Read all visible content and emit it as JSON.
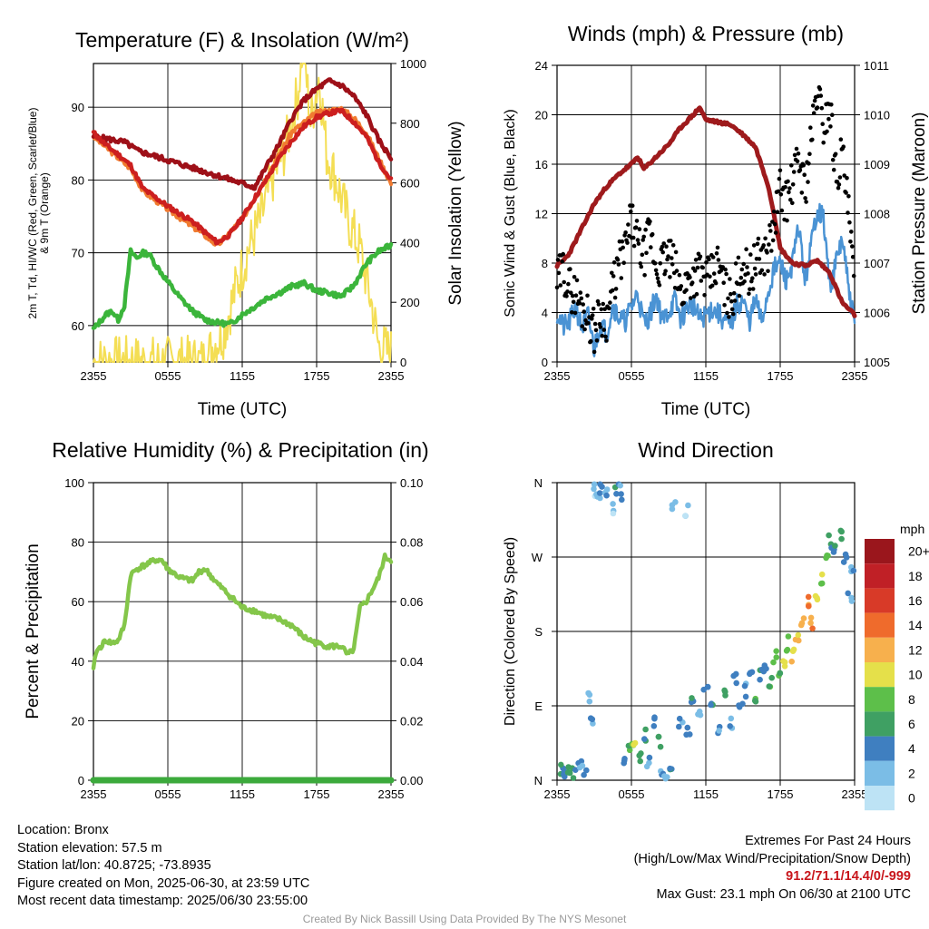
{
  "colors": {
    "temperature": "#cc1f1f",
    "heat_index_scarlet": "#9e1018",
    "dewpoint": "#3bb53b",
    "temp_9m_orange": "#f07b30",
    "insolation": "#f4de54",
    "sonic_wind": "#4a93d4",
    "gust": "#000000",
    "pressure": "#9e1a1c",
    "relative_humidity": "#84c64a",
    "precipitation": "#3caa3c",
    "extremes": "#c8151b"
  },
  "x_ticks": [
    "2355",
    "0555",
    "1155",
    "1755",
    "2355"
  ],
  "info": {
    "location": "Location: Bronx",
    "elevation": "Station elevation: 57.5 m",
    "latlon": "Station lat/lon: 40.8725; -73.8935",
    "created": "Figure created on Mon, 2025-06-30, at 23:59 UTC",
    "recent": "Most recent data timestamp: 2025/06/30 23:55:00"
  },
  "extremes": {
    "title": "Extremes For Past 24 Hours",
    "subtitle": "(High/Low/Max Wind/Precipitation/Snow Depth)",
    "values": "91.2/71.1/14.4/0/-999",
    "max_gust": "Max Gust: 23.1 mph On 06/30 at 2100 UTC"
  },
  "footer": "Created By Nick Bassill Using Data Provided By The NYS Mesonet",
  "chart_data": [
    {
      "type": "line",
      "id": "temperature",
      "title": "Temperature (F) & Insolation (W/m²)",
      "xlabel": "Time (UTC)",
      "ylabel_left": [
        "2m T, Td, HI/WC (Red, Green, Scarlet/Blue)",
        "& 9m T (Orange)"
      ],
      "ylabel_right": "Solar Insolation (Yellow)",
      "x_range_hours": [
        0,
        24
      ],
      "ylim_left": [
        55,
        96
      ],
      "ylim_right": [
        0,
        1000
      ],
      "yticks_left": [
        60,
        70,
        80,
        90
      ],
      "yticks_right": [
        0,
        200,
        400,
        600,
        800,
        1000
      ],
      "series": [
        {
          "name": "2m T",
          "axis": "left",
          "x": [
            0,
            1,
            2,
            3,
            4,
            5,
            6,
            7,
            8,
            9,
            10,
            11,
            12,
            13,
            14,
            15,
            16,
            17,
            18,
            19,
            20,
            21,
            22,
            23,
            24
          ],
          "y": [
            86.5,
            84.8,
            83.5,
            82.0,
            78.8,
            77.6,
            76.4,
            75.3,
            74.3,
            72.8,
            71.4,
            72.5,
            74.8,
            77.5,
            80.2,
            83.0,
            85.4,
            87.4,
            88.6,
            89.2,
            89.5,
            88.0,
            86.0,
            82.5,
            80.0
          ]
        },
        {
          "name": "9m T",
          "axis": "left",
          "x": [
            0,
            3,
            4,
            6,
            9,
            10,
            12,
            14,
            16,
            18,
            20,
            21,
            22,
            23,
            24
          ],
          "y": [
            86.0,
            81.6,
            78.5,
            76.0,
            72.4,
            71.0,
            74.6,
            80.5,
            86.6,
            89.2,
            89.8,
            88.5,
            86.5,
            83.0,
            79.5
          ]
        },
        {
          "name": "Heat Index",
          "axis": "left",
          "x": [
            0,
            2.5,
            3.6,
            13,
            14,
            15,
            16,
            17,
            18,
            19,
            20,
            21,
            22,
            23,
            24
          ],
          "y": [
            86.0,
            85.2,
            84.0,
            79.0,
            82.0,
            85.0,
            88.5,
            91.0,
            92.5,
            93.6,
            93.0,
            91.5,
            89.0,
            85.5,
            83.0
          ]
        },
        {
          "name": "Td",
          "axis": "left",
          "x": [
            0,
            0.5,
            1,
            1.5,
            2,
            2.5,
            3,
            3.5,
            4,
            4.5,
            5,
            6,
            7,
            8,
            9,
            10,
            11,
            12,
            13,
            14,
            15,
            16,
            17,
            18,
            19,
            20,
            21,
            22,
            23,
            24
          ],
          "y": [
            59.5,
            60.5,
            61.5,
            62.0,
            60.8,
            62.8,
            70.2,
            69.3,
            70.0,
            69.8,
            68.4,
            66.0,
            63.8,
            62.0,
            60.8,
            60.4,
            60.2,
            61.5,
            62.6,
            63.8,
            64.5,
            65.4,
            65.8,
            64.8,
            64.5,
            64.0,
            65.5,
            68.5,
            70.2,
            71.0
          ]
        },
        {
          "name": "Solar Insolation",
          "axis": "right",
          "x": [
            0,
            9,
            9.6,
            10.5,
            11.5,
            12.5,
            13.5,
            14.5,
            15.5,
            16.5,
            16.9,
            17.5,
            18.2,
            18.8,
            19.5,
            20.5,
            21.5,
            22.5,
            23,
            24
          ],
          "y": [
            0,
            0,
            50,
            100,
            250,
            380,
            480,
            620,
            720,
            900,
            1080,
            800,
            960,
            700,
            620,
            480,
            380,
            180,
            50,
            30
          ]
        }
      ]
    },
    {
      "type": "line",
      "id": "winds",
      "title": "Winds (mph) & Pressure (mb)",
      "xlabel": "Time (UTC)",
      "ylabel_left": "Sonic Wind & Gust (Blue, Black)",
      "ylabel_right": "Station Pressure (Maroon)",
      "x_range_hours": [
        0,
        24
      ],
      "ylim_left": [
        0,
        24
      ],
      "ylim_right": [
        1005,
        1011
      ],
      "yticks_left": [
        0,
        4,
        8,
        12,
        16,
        20,
        24
      ],
      "yticks_right": [
        1005,
        1006,
        1007,
        1008,
        1009,
        1010,
        1011
      ],
      "series": [
        {
          "name": "Station Pressure",
          "axis": "right",
          "x": [
            0,
            0.5,
            1,
            2,
            3,
            4,
            5,
            6,
            6.5,
            7,
            8,
            9,
            10,
            11,
            11.5,
            12,
            13,
            14,
            15,
            16,
            17,
            17.5,
            18,
            19,
            20,
            21,
            22,
            23,
            24
          ],
          "y": [
            1006.95,
            1007.05,
            1007.2,
            1007.7,
            1008.2,
            1008.55,
            1008.8,
            1009.0,
            1009.15,
            1008.9,
            1009.15,
            1009.4,
            1009.75,
            1010.0,
            1010.15,
            1009.9,
            1009.85,
            1009.8,
            1009.6,
            1009.35,
            1008.6,
            1008.0,
            1007.3,
            1007.0,
            1006.95,
            1007.05,
            1006.8,
            1006.2,
            1005.95
          ]
        },
        {
          "name": "Sonic Wind",
          "axis": "left",
          "x": [
            0,
            0.5,
            1,
            1.5,
            2,
            2.5,
            3,
            3.5,
            4,
            4.5,
            5,
            5.5,
            6,
            6.5,
            7,
            7.5,
            8,
            8.5,
            9,
            9.5,
            10,
            10.5,
            11,
            11.5,
            12,
            12.5,
            13,
            13.5,
            14,
            14.5,
            15,
            15.5,
            16,
            16.5,
            17,
            17.5,
            18,
            18.5,
            19,
            19.5,
            20,
            20.5,
            21,
            21.5,
            22,
            22.5,
            23,
            23.5,
            24
          ],
          "y": [
            4.0,
            2.8,
            3.2,
            4.5,
            2.7,
            3.8,
            1.0,
            3.2,
            2.3,
            4.6,
            3.6,
            3.3,
            4.5,
            5.6,
            3.1,
            3.8,
            5.5,
            3.3,
            4.1,
            5.0,
            3.4,
            4.5,
            4.6,
            3.4,
            3.8,
            4.3,
            3.9,
            3.3,
            2.9,
            4.6,
            5.0,
            3.2,
            5.0,
            3.3,
            5.5,
            7.5,
            8.0,
            6.5,
            8.0,
            11.0,
            6.5,
            9.5,
            12.5,
            11.5,
            6.0,
            8.0,
            10.0,
            6.0,
            3.0
          ]
        },
        {
          "name": "Gust",
          "axis": "left",
          "style": "points",
          "x": [
            0,
            0.5,
            1,
            1.5,
            2,
            2.5,
            3,
            3.5,
            4,
            4.5,
            5,
            5.5,
            6,
            6.5,
            7,
            7.5,
            8,
            8.5,
            9,
            9.5,
            10,
            10.5,
            11,
            11.5,
            12,
            12.5,
            13,
            13.5,
            14,
            14.5,
            15,
            15.5,
            16,
            16.5,
            17,
            17.5,
            18,
            18.5,
            19,
            19.5,
            20,
            20.5,
            21,
            21.5,
            22,
            22.5,
            23,
            23.5,
            24
          ],
          "y": [
            6.5,
            7.5,
            6.0,
            5.5,
            4.5,
            3.8,
            2.5,
            4.0,
            3.5,
            6.0,
            8.0,
            9.0,
            11.5,
            9.5,
            8.5,
            10.5,
            7.5,
            8.0,
            8.5,
            7.5,
            5.5,
            6.5,
            7.0,
            7.5,
            6.5,
            7.0,
            8.0,
            6.0,
            5.0,
            6.5,
            8.0,
            7.0,
            8.0,
            8.5,
            9.0,
            11.0,
            14.0,
            13.0,
            14.5,
            16.5,
            14.0,
            18.0,
            22.0,
            19.0,
            21.0,
            15.0,
            17.0,
            12.0,
            6.0
          ]
        }
      ]
    },
    {
      "type": "line",
      "id": "humidity",
      "title": "Relative Humidity (%) & Precipitation (in)",
      "ylabel_left": "Percent & Precipitation",
      "x_range_hours": [
        0,
        24
      ],
      "ylim_left": [
        0,
        100
      ],
      "ylim_right": [
        0,
        0.1
      ],
      "yticks_left": [
        0,
        20,
        40,
        60,
        80,
        100
      ],
      "yticks_right": [
        "0.00",
        "0.02",
        "0.04",
        "0.06",
        "0.08",
        "0.10"
      ],
      "series": [
        {
          "name": "Relative Humidity",
          "axis": "left",
          "x": [
            0,
            0.2,
            0.6,
            1,
            1.5,
            2,
            2.5,
            3,
            3.5,
            4,
            5,
            5.5,
            6,
            7,
            8,
            8.5,
            9,
            10,
            11,
            12,
            13,
            14,
            15,
            16,
            17,
            18,
            19,
            20,
            20.5,
            21,
            21.5,
            22,
            23,
            23.5,
            24
          ],
          "y": [
            37,
            43,
            45,
            47,
            46,
            47,
            52,
            69,
            71,
            72,
            74,
            74,
            71,
            68,
            67,
            70,
            71,
            66,
            62,
            58,
            57,
            55,
            54,
            52,
            48,
            46,
            45,
            45,
            42,
            44,
            58,
            60,
            68,
            75,
            74
          ]
        },
        {
          "name": "Precipitation",
          "axis": "right",
          "x": [
            0,
            24
          ],
          "y": [
            0,
            0
          ]
        }
      ]
    },
    {
      "type": "scatter",
      "id": "wind_direction",
      "title": "Wind Direction",
      "ylabel_left": "Direction (Colored By Speed)",
      "x_range_hours": [
        0,
        24
      ],
      "ylim_degrees": [
        0,
        360
      ],
      "yticks": [
        "N",
        "E",
        "S",
        "W",
        "N"
      ],
      "colorbar": {
        "title": "mph",
        "labels": [
          "0",
          "2",
          "4",
          "6",
          "8",
          "10",
          "12",
          "14",
          "16",
          "18",
          "20+"
        ],
        "colors": [
          "#bde3f5",
          "#7bbde6",
          "#3f7fc0",
          "#3fa063",
          "#5dbf4a",
          "#e5e04a",
          "#f7b04d",
          "#ef6b2c",
          "#d83a28",
          "#c02026",
          "#9a161c"
        ]
      },
      "points": [
        {
          "x": 0.3,
          "dir": 10,
          "speed": 4
        },
        {
          "x": 0.6,
          "dir": 5,
          "speed": 3
        },
        {
          "x": 1.0,
          "dir": 15,
          "speed": 5
        },
        {
          "x": 1.4,
          "dir": 8,
          "speed": 4
        },
        {
          "x": 1.8,
          "dir": 20,
          "speed": 2
        },
        {
          "x": 2.2,
          "dir": 12,
          "speed": 3
        },
        {
          "x": 2.6,
          "dir": 100,
          "speed": 2
        },
        {
          "x": 2.8,
          "dir": 70,
          "speed": 3
        },
        {
          "x": 3.1,
          "dir": 350,
          "speed": 1
        },
        {
          "x": 3.3,
          "dir": 340,
          "speed": 2
        },
        {
          "x": 3.6,
          "dir": 355,
          "speed": 3
        },
        {
          "x": 4.0,
          "dir": 345,
          "speed": 2
        },
        {
          "x": 4.4,
          "dir": 330,
          "speed": 1
        },
        {
          "x": 4.8,
          "dir": 352,
          "speed": 4
        },
        {
          "x": 5.2,
          "dir": 348,
          "speed": 3
        },
        {
          "x": 5.5,
          "dir": 20,
          "speed": 3
        },
        {
          "x": 5.9,
          "dir": 35,
          "speed": 6
        },
        {
          "x": 6.3,
          "dir": 45,
          "speed": 8
        },
        {
          "x": 6.7,
          "dir": 30,
          "speed": 5
        },
        {
          "x": 7.0,
          "dir": 55,
          "speed": 4
        },
        {
          "x": 7.4,
          "dir": 20,
          "speed": 2
        },
        {
          "x": 7.8,
          "dir": 70,
          "speed": 4
        },
        {
          "x": 8.2,
          "dir": 45,
          "speed": 5
        },
        {
          "x": 8.5,
          "dir": 10,
          "speed": 3
        },
        {
          "x": 8.8,
          "dir": 5,
          "speed": 2
        },
        {
          "x": 9.1,
          "dir": 8,
          "speed": 4
        },
        {
          "x": 9.4,
          "dir": 330,
          "speed": 2
        },
        {
          "x": 10.4,
          "dir": 325,
          "speed": 1
        },
        {
          "x": 10.0,
          "dir": 70,
          "speed": 3
        },
        {
          "x": 10.6,
          "dir": 55,
          "speed": 3
        },
        {
          "x": 11.0,
          "dir": 95,
          "speed": 4
        },
        {
          "x": 11.5,
          "dir": 75,
          "speed": 2
        },
        {
          "x": 12.0,
          "dir": 110,
          "speed": 3
        },
        {
          "x": 12.5,
          "dir": 85,
          "speed": 4
        },
        {
          "x": 13.0,
          "dir": 60,
          "speed": 2
        },
        {
          "x": 13.5,
          "dir": 100,
          "speed": 5
        },
        {
          "x": 14.0,
          "dir": 70,
          "speed": 3
        },
        {
          "x": 14.4,
          "dir": 120,
          "speed": 4
        },
        {
          "x": 14.8,
          "dir": 85,
          "speed": 5
        },
        {
          "x": 15.2,
          "dir": 110,
          "speed": 3
        },
        {
          "x": 15.6,
          "dir": 130,
          "speed": 4
        },
        {
          "x": 16.0,
          "dir": 95,
          "speed": 6
        },
        {
          "x": 16.4,
          "dir": 125,
          "speed": 5
        },
        {
          "x": 16.8,
          "dir": 140,
          "speed": 4
        },
        {
          "x": 17.2,
          "dir": 115,
          "speed": 6
        },
        {
          "x": 17.6,
          "dir": 150,
          "speed": 8
        },
        {
          "x": 18.0,
          "dir": 125,
          "speed": 7
        },
        {
          "x": 18.3,
          "dir": 140,
          "speed": 9
        },
        {
          "x": 18.6,
          "dir": 165,
          "speed": 8
        },
        {
          "x": 19.0,
          "dir": 150,
          "speed": 10
        },
        {
          "x": 19.4,
          "dir": 175,
          "speed": 11
        },
        {
          "x": 19.8,
          "dir": 195,
          "speed": 12
        },
        {
          "x": 20.2,
          "dir": 215,
          "speed": 13
        },
        {
          "x": 20.6,
          "dir": 190,
          "speed": 12
        },
        {
          "x": 20.9,
          "dir": 225,
          "speed": 10
        },
        {
          "x": 21.3,
          "dir": 245,
          "speed": 8
        },
        {
          "x": 21.7,
          "dir": 275,
          "speed": 7
        },
        {
          "x": 22.0,
          "dir": 290,
          "speed": 5
        },
        {
          "x": 22.4,
          "dir": 285,
          "speed": 4
        },
        {
          "x": 22.8,
          "dir": 295,
          "speed": 6
        },
        {
          "x": 23.2,
          "dir": 265,
          "speed": 4
        },
        {
          "x": 23.6,
          "dir": 220,
          "speed": 3
        },
        {
          "x": 23.9,
          "dir": 255,
          "speed": 3
        }
      ]
    }
  ]
}
